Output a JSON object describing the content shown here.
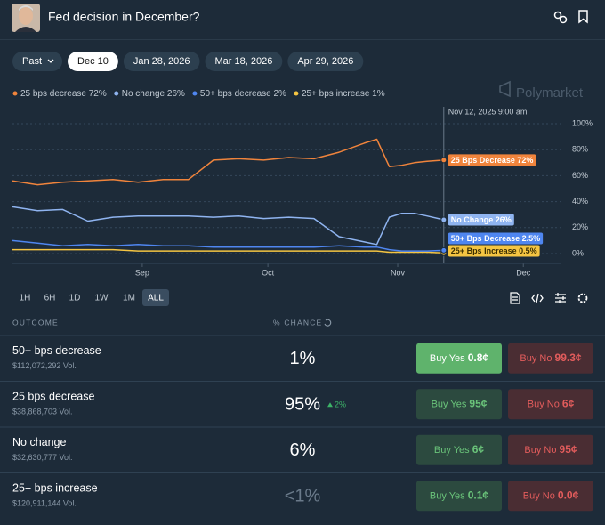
{
  "header": {
    "title": "Fed decision in December?"
  },
  "date_tabs": [
    "Past",
    "Dec 10",
    "Jan 28, 2026",
    "Mar 18, 2026",
    "Apr 29, 2026"
  ],
  "watermark": "Polymarket",
  "chart_data": {
    "type": "line",
    "hover_label": "Nov 12, 2025 9:00 am",
    "hover_x": 316,
    "x": [
      213,
      219,
      225,
      231,
      237,
      243,
      249,
      255,
      261,
      267,
      273,
      279,
      285,
      291,
      297,
      300,
      303,
      306,
      309,
      312,
      316
    ],
    "xlim": [
      213,
      346
    ],
    "xticks": [
      {
        "value": 244,
        "label": "Sep"
      },
      {
        "value": 274,
        "label": "Oct"
      },
      {
        "value": 305,
        "label": "Nov"
      },
      {
        "value": 335,
        "label": "Dec"
      }
    ],
    "ylim": [
      0,
      100
    ],
    "yticks": [
      {
        "value": 0,
        "label": "0%"
      },
      {
        "value": 20,
        "label": "20%"
      },
      {
        "value": 40,
        "label": "40%"
      },
      {
        "value": 60,
        "label": "60%"
      },
      {
        "value": 80,
        "label": "80%"
      },
      {
        "value": 100,
        "label": "100%"
      }
    ],
    "grid": true,
    "series": [
      {
        "name": "25 bps decrease",
        "color": "#f0843c",
        "last": {
          "value": 72,
          "label": "72%"
        },
        "tooltip": "25 Bps Decrease 72%",
        "values": [
          56,
          53,
          55,
          56,
          57,
          55,
          57,
          57,
          72,
          73,
          72,
          74,
          73,
          78,
          85,
          88,
          67,
          68,
          70,
          71,
          72
        ]
      },
      {
        "name": "No change",
        "color": "#8fb4f0",
        "last": {
          "value": 26,
          "label": "26%"
        },
        "tooltip": "No Change 26%",
        "values": [
          36,
          33,
          34,
          25,
          28,
          29,
          29,
          29,
          28,
          29,
          27,
          28,
          27,
          13,
          9,
          7,
          28,
          31,
          31,
          29,
          26
        ]
      },
      {
        "name": "50+ bps decrease",
        "color": "#4f86f0",
        "last": {
          "value": 2,
          "label": "2%"
        },
        "tooltip": "50+ Bps Decrease 2.5%",
        "values": [
          10,
          8,
          6,
          7,
          6,
          7,
          6,
          6,
          5,
          5,
          5,
          5,
          5,
          6,
          5,
          5,
          3,
          2,
          2,
          2,
          2.5
        ]
      },
      {
        "name": "25+ bps increase",
        "color": "#f5c542",
        "last": {
          "value": 1,
          "label": "1%"
        },
        "tooltip": "25+ Bps Increase 0.5%",
        "values": [
          3,
          3,
          3,
          3,
          3,
          2,
          2,
          2,
          2,
          2,
          2,
          2,
          2,
          2,
          2,
          2,
          1,
          1,
          1,
          1,
          0.5
        ]
      }
    ]
  },
  "ranges": [
    "1H",
    "6H",
    "1D",
    "1W",
    "1M",
    "ALL"
  ],
  "table": {
    "headers": [
      "OUTCOME",
      "% CHANCE"
    ],
    "buy_yes": "Buy Yes",
    "buy_no": "Buy No",
    "rows": [
      {
        "name": "50+ bps decrease",
        "volume": "$112,072,292 Vol.",
        "chance": "1%",
        "yes": "0.8¢",
        "no": "99.3¢"
      },
      {
        "name": "25 bps decrease",
        "volume": "$38,868,703 Vol.",
        "chance": "95%",
        "change": "2%",
        "yes": "95¢",
        "no": "6¢"
      },
      {
        "name": "No change",
        "volume": "$32,630,777 Vol.",
        "chance": "6%",
        "yes": "6¢",
        "no": "95¢"
      },
      {
        "name": "25+ bps increase",
        "volume": "$120,911,144 Vol.",
        "chance": "<1%",
        "yes": "0.1¢",
        "no": "0.0¢"
      }
    ]
  }
}
